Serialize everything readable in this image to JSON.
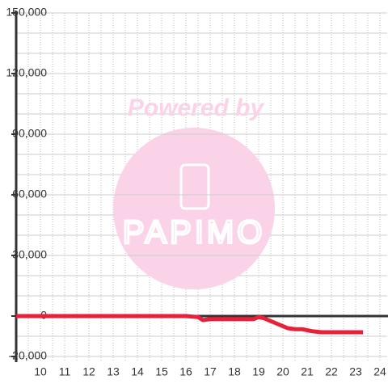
{
  "chart_data": {
    "type": "line",
    "watermark": [
      "Powered by",
      "PAPIMO"
    ],
    "x": [
      9,
      16,
      16.5,
      16.7,
      17,
      18.8,
      19,
      19.2,
      19.5,
      19.8,
      20.2,
      20.5,
      20.8,
      21.2,
      21.6,
      23.3
    ],
    "series": [
      {
        "name": "value",
        "color": "#e8203a",
        "values": [
          0,
          0,
          -500,
          -2000,
          -1500,
          -1500,
          -500,
          -1000,
          -2500,
          -4000,
          -6000,
          -6500,
          -6500,
          -7500,
          -8000,
          -8000
        ]
      }
    ],
    "xlim": [
      9,
      24.3
    ],
    "xticks": [
      10,
      11,
      12,
      13,
      14,
      15,
      16,
      17,
      18,
      19,
      20,
      21,
      22,
      23,
      24
    ],
    "xgrid": [
      9.5,
      10,
      10.5,
      11,
      11.5,
      12,
      12.5,
      13,
      13.5,
      14,
      14.5,
      15,
      15.5,
      16,
      16.5,
      17,
      17.5,
      18,
      18.5,
      19,
      19.5,
      20,
      20.5,
      21,
      21.5,
      22,
      22.5,
      23,
      23.5,
      24
    ],
    "ylim": [
      -20000,
      150000
    ],
    "yticks": [
      {
        "value": 150000,
        "label": "150,000"
      },
      {
        "value": 120000,
        "label": "120,000"
      },
      {
        "value": 90000,
        "label": "90,000"
      },
      {
        "value": 60000,
        "label": "60,000"
      },
      {
        "value": 30000,
        "label": "30,000"
      },
      0,
      {
        "value": -20000,
        "label": "-20,000"
      }
    ],
    "ygrid": [
      140000,
      130000,
      110000,
      100000,
      80000,
      70000,
      50000,
      40000,
      20000,
      10000,
      -10000
    ],
    "grid": true
  }
}
